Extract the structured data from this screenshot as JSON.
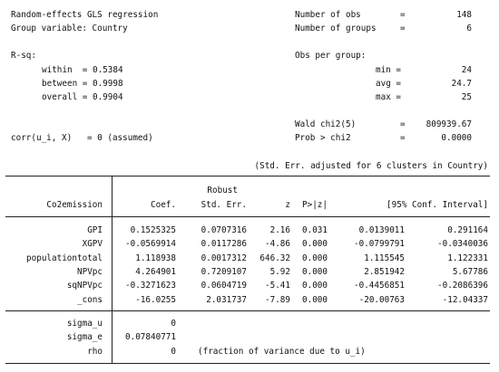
{
  "header": {
    "title": "Random-effects GLS regression",
    "group_var": "Group variable: Country",
    "rsq_label": "R-sq:",
    "within": "within  = 0.5384",
    "between": "between = 0.9998",
    "overall": "overall = 0.9904",
    "corr": "corr(u_i, X)   = 0 (assumed)",
    "nobs_label": "Number of obs",
    "nobs_value": "148",
    "ngroups_label": "Number of groups",
    "ngroups_value": "6",
    "obs_per_group": "Obs per group:",
    "min_label": "min =",
    "min_value": "24",
    "avg_label": "avg =",
    "avg_value": "24.7",
    "max_label": "max =",
    "max_value": "25",
    "wald_label": "Wald chi2(5)",
    "wald_value": "809939.67",
    "prob_label": "Prob > chi2",
    "prob_value": "0.0000",
    "eq": "=",
    "cluster_note": "(Std. Err. adjusted for 6 clusters in Country)"
  },
  "table": {
    "dep_var": "Co2emission",
    "robust": "Robust",
    "columns": [
      "Coef.",
      "Std. Err.",
      "z",
      "P>|z|",
      "[95% Conf. Interval]"
    ],
    "rows": [
      {
        "name": "GPI",
        "coef": "0.1525325",
        "se": "0.0707316",
        "z": "2.16",
        "p": "0.031",
        "lo": "0.0139011",
        "hi": "0.291164"
      },
      {
        "name": "XGPV",
        "coef": "-0.0569914",
        "se": "0.0117286",
        "z": "-4.86",
        "p": "0.000",
        "lo": "-0.0799791",
        "hi": "-0.0340036"
      },
      {
        "name": "populationtotal",
        "coef": "1.118938",
        "se": "0.0017312",
        "z": "646.32",
        "p": "0.000",
        "lo": "1.115545",
        "hi": "1.122331"
      },
      {
        "name": "NPVpc",
        "coef": "4.264901",
        "se": "0.7209107",
        "z": "5.92",
        "p": "0.000",
        "lo": "2.851942",
        "hi": "5.67786"
      },
      {
        "name": "sqNPVpc",
        "coef": "-0.3271623",
        "se": "0.0604719",
        "z": "-5.41",
        "p": "0.000",
        "lo": "-0.4456851",
        "hi": "-0.2086396"
      },
      {
        "name": "_cons",
        "coef": "-16.0255",
        "se": "2.031737",
        "z": "-7.89",
        "p": "0.000",
        "lo": "-20.00763",
        "hi": "-12.04337"
      }
    ],
    "sigma_u_label": "sigma_u",
    "sigma_u": "0",
    "sigma_e_label": "sigma_e",
    "sigma_e": "0.07840771",
    "rho_label": "rho",
    "rho": "0",
    "rho_note": "(fraction of variance due to u_i)"
  }
}
